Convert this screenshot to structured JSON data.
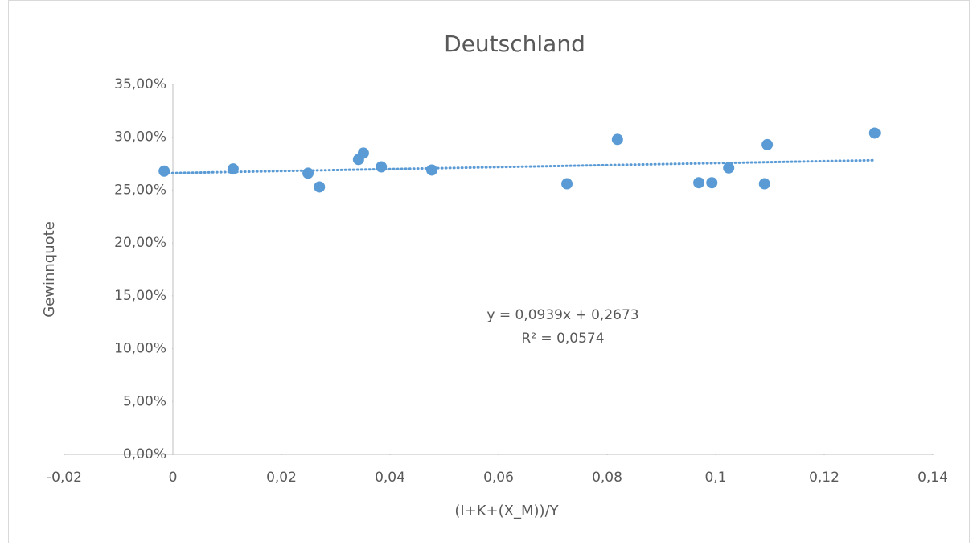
{
  "chart_data": {
    "type": "scatter",
    "title": "Deutschland",
    "x_label": "(I+K+(X_M))/Y",
    "y_label": "Gewinnquote",
    "annotations": [
      "y = 0,0939x + 0,2673",
      "R² = 0,0574"
    ],
    "trendline": true,
    "color": "#5b9bd5",
    "x": [
      -0.0016,
      0.0111,
      0.0249,
      0.027,
      0.0342,
      0.0351,
      0.0384,
      0.0477,
      0.0726,
      0.0819,
      0.0969,
      0.0993,
      0.1024,
      0.109,
      0.1095,
      0.1293
    ],
    "values": [
      26.8,
      27.0,
      26.6,
      25.3,
      27.9,
      28.5,
      27.2,
      26.9,
      25.6,
      29.8,
      25.7,
      25.7,
      27.1,
      25.6,
      29.3,
      30.4
    ],
    "xlim": [
      -0.02,
      0.14
    ],
    "xticks": [
      {
        "value": -0.02,
        "label": "-0,02"
      },
      0,
      {
        "value": 0.02,
        "label": "0,02"
      },
      {
        "value": 0.04,
        "label": "0,04"
      },
      {
        "value": 0.06,
        "label": "0,06"
      },
      {
        "value": 0.08,
        "label": "0,08"
      },
      {
        "value": 0.1,
        "label": "0,1"
      },
      {
        "value": 0.12,
        "label": "0,12"
      },
      {
        "value": 0.14,
        "label": "0,14"
      }
    ],
    "ylim": [
      0,
      35
    ],
    "yticks": [
      {
        "value": 0,
        "label": "0,00%"
      },
      {
        "value": 5,
        "label": "5,00%"
      },
      {
        "value": 10,
        "label": "10,00%"
      },
      {
        "value": 15,
        "label": "15,00%"
      },
      {
        "value": 20,
        "label": "20,00%"
      },
      {
        "value": 25,
        "label": "25,00%"
      },
      {
        "value": 30,
        "label": "30,00%"
      },
      {
        "value": 35,
        "label": "35,00%"
      }
    ]
  }
}
